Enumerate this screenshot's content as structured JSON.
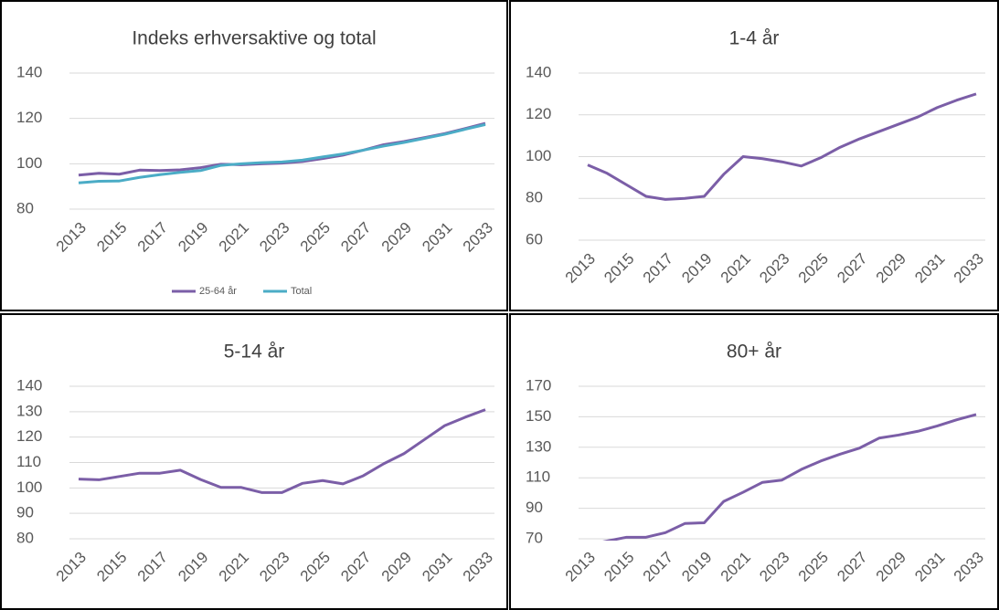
{
  "chart_data": [
    {
      "type": "line",
      "title": "Indeks erhversaktive og total",
      "x": [
        2013,
        2014,
        2015,
        2016,
        2017,
        2018,
        2019,
        2020,
        2021,
        2022,
        2023,
        2024,
        2025,
        2026,
        2027,
        2028,
        2029,
        2030,
        2031,
        2032,
        2033
      ],
      "xticks": [
        2013,
        2015,
        2017,
        2019,
        2021,
        2023,
        2025,
        2027,
        2029,
        2031,
        2033
      ],
      "ylim": [
        80,
        140
      ],
      "yticks": [
        80,
        100,
        120,
        140
      ],
      "grid": true,
      "legend": "bottom",
      "series": [
        {
          "name": "25-64 år",
          "color": "#7b5ea7",
          "values": [
            95,
            95.8,
            95.4,
            97.2,
            97,
            97.3,
            98.3,
            99.8,
            99.6,
            100,
            100.3,
            101,
            102.3,
            103.8,
            106,
            108.4,
            109.8,
            111.5,
            113.3,
            115.5,
            117.8
          ]
        },
        {
          "name": "Total",
          "color": "#4bacc6",
          "values": [
            91.6,
            92.3,
            92.4,
            94,
            95.2,
            96.2,
            97,
            99.3,
            100,
            100.5,
            100.8,
            101.6,
            103,
            104.3,
            106,
            107.8,
            109.4,
            111.2,
            113,
            115.2,
            117.3
          ]
        }
      ]
    },
    {
      "type": "line",
      "title": "1-4 år",
      "x": [
        2013,
        2014,
        2015,
        2016,
        2017,
        2018,
        2019,
        2020,
        2021,
        2022,
        2023,
        2024,
        2025,
        2026,
        2027,
        2028,
        2029,
        2030,
        2031,
        2032,
        2033
      ],
      "xticks": [
        2013,
        2015,
        2017,
        2019,
        2021,
        2023,
        2025,
        2027,
        2029,
        2031,
        2033
      ],
      "ylim": [
        60,
        140
      ],
      "yticks": [
        60,
        80,
        100,
        120,
        140
      ],
      "grid": true,
      "series": [
        {
          "color": "#7b5ea7",
          "values": [
            96,
            92,
            86.5,
            81,
            79.5,
            80,
            81,
            91.5,
            100,
            99,
            97.5,
            95.5,
            99.5,
            104.5,
            108.5,
            112,
            115.5,
            119,
            123.5,
            127,
            130
          ]
        }
      ]
    },
    {
      "type": "line",
      "title": "5-14 år",
      "x": [
        2013,
        2014,
        2015,
        2016,
        2017,
        2018,
        2019,
        2020,
        2021,
        2022,
        2023,
        2024,
        2025,
        2026,
        2027,
        2028,
        2029,
        2030,
        2031,
        2032,
        2033
      ],
      "xticks": [
        2013,
        2015,
        2017,
        2019,
        2021,
        2023,
        2025,
        2027,
        2029,
        2031,
        2033
      ],
      "ylim": [
        80,
        140
      ],
      "yticks": [
        80,
        90,
        100,
        110,
        120,
        130,
        140
      ],
      "grid": true,
      "series": [
        {
          "color": "#7b5ea7",
          "values": [
            103.5,
            103.2,
            104.5,
            105.8,
            105.8,
            107,
            103.3,
            100.2,
            100.2,
            98.2,
            98.2,
            101.8,
            102.9,
            101.6,
            104.8,
            109.5,
            113.5,
            119,
            124.5,
            127.8,
            130.8
          ]
        }
      ]
    },
    {
      "type": "line",
      "title": "80+ år",
      "x": [
        2013,
        2014,
        2015,
        2016,
        2017,
        2018,
        2019,
        2020,
        2021,
        2022,
        2023,
        2024,
        2025,
        2026,
        2027,
        2028,
        2029,
        2030,
        2031,
        2032,
        2033
      ],
      "xticks": [
        2013,
        2015,
        2017,
        2019,
        2021,
        2023,
        2025,
        2027,
        2029,
        2031,
        2033
      ],
      "ylim": [
        70,
        170
      ],
      "yticks": [
        70,
        90,
        110,
        130,
        150,
        170
      ],
      "grid": true,
      "series": [
        {
          "color": "#7b5ea7",
          "values": [
            66,
            68.5,
            71,
            71,
            74,
            80,
            80.5,
            94.5,
            100.5,
            107,
            108.5,
            115.5,
            121,
            125.5,
            129.5,
            136,
            138,
            140.5,
            144,
            148,
            151.5
          ]
        }
      ]
    }
  ]
}
